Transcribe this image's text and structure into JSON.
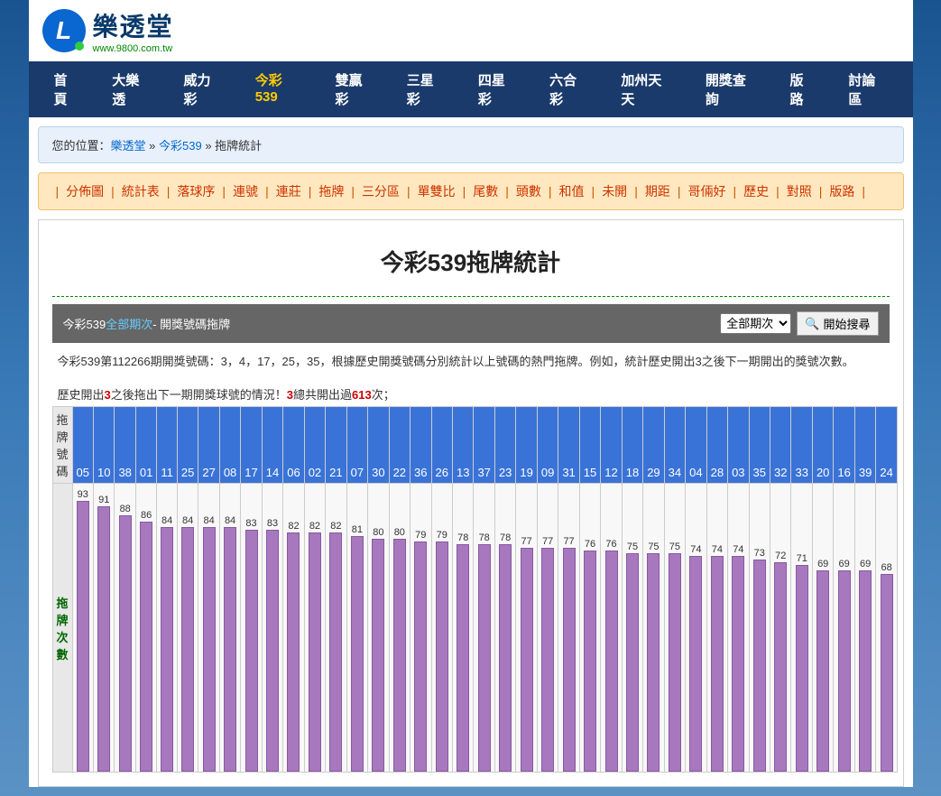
{
  "logo": {
    "letter": "L",
    "title": "樂透堂",
    "url": "www.9800.com.tw"
  },
  "mainNav": [
    {
      "label": "首頁",
      "active": false
    },
    {
      "label": "大樂透",
      "active": false
    },
    {
      "label": "威力彩",
      "active": false
    },
    {
      "label": "今彩539",
      "active": true
    },
    {
      "label": "雙贏彩",
      "active": false
    },
    {
      "label": "三星彩",
      "active": false
    },
    {
      "label": "四星彩",
      "active": false
    },
    {
      "label": "六合彩",
      "active": false
    },
    {
      "label": "加州天天",
      "active": false
    },
    {
      "label": "開獎查詢",
      "active": false
    },
    {
      "label": "版路",
      "active": false
    },
    {
      "label": "討論區",
      "active": false
    }
  ],
  "breadcrumb": {
    "prefix": "您的位置：",
    "items": [
      "樂透堂",
      "今彩539",
      "拖牌統計"
    ],
    "sep": " » "
  },
  "subNav": [
    "分佈圖",
    "統計表",
    "落球序",
    "連號",
    "連莊",
    "拖牌",
    "三分區",
    "單雙比",
    "尾數",
    "頭數",
    "和值",
    "未開",
    "期距",
    "哥倆好",
    "歷史",
    "對照",
    "版路"
  ],
  "pageTitle": "今彩539拖牌統計",
  "filterBar": {
    "prefix": "今彩539",
    "link": "全部期次",
    "suffix": " - 開獎號碼拖牌",
    "selectLabel": "全部期次",
    "button": "開始搜尋"
  },
  "infoText": "今彩539第112266期開獎號碼：3，4，17，25，35，根據歷史開獎號碼分別統計以上號碼的熱門拖牌。例如，統計歷史開出3之後下一期開出的獎號次數。",
  "history": {
    "t1": "歷史開出",
    "n1": "3",
    "t2": "之後拖出下一期開獎球號的情況！",
    "n2": "3",
    "t3": "總共開出過",
    "n3": "613",
    "t4": "次；"
  },
  "chart": {
    "headerLabel": "拖牌號碼",
    "sideLabel": "拖牌次數",
    "maxVal": 93,
    "barColor": "#a878bf",
    "numbers": [
      "05",
      "10",
      "38",
      "01",
      "11",
      "25",
      "27",
      "08",
      "17",
      "14",
      "06",
      "02",
      "21",
      "07",
      "30",
      "22",
      "36",
      "26",
      "13",
      "37",
      "23",
      "19",
      "09",
      "31",
      "15",
      "12",
      "18",
      "29",
      "34",
      "04",
      "28",
      "03",
      "35",
      "32",
      "33",
      "20",
      "16",
      "39",
      "24"
    ],
    "values": [
      93,
      91,
      88,
      86,
      84,
      84,
      84,
      84,
      83,
      83,
      82,
      82,
      82,
      81,
      80,
      80,
      79,
      79,
      78,
      78,
      78,
      77,
      77,
      77,
      76,
      76,
      75,
      75,
      75,
      74,
      74,
      74,
      73,
      72,
      71,
      69,
      69,
      69,
      68
    ]
  }
}
